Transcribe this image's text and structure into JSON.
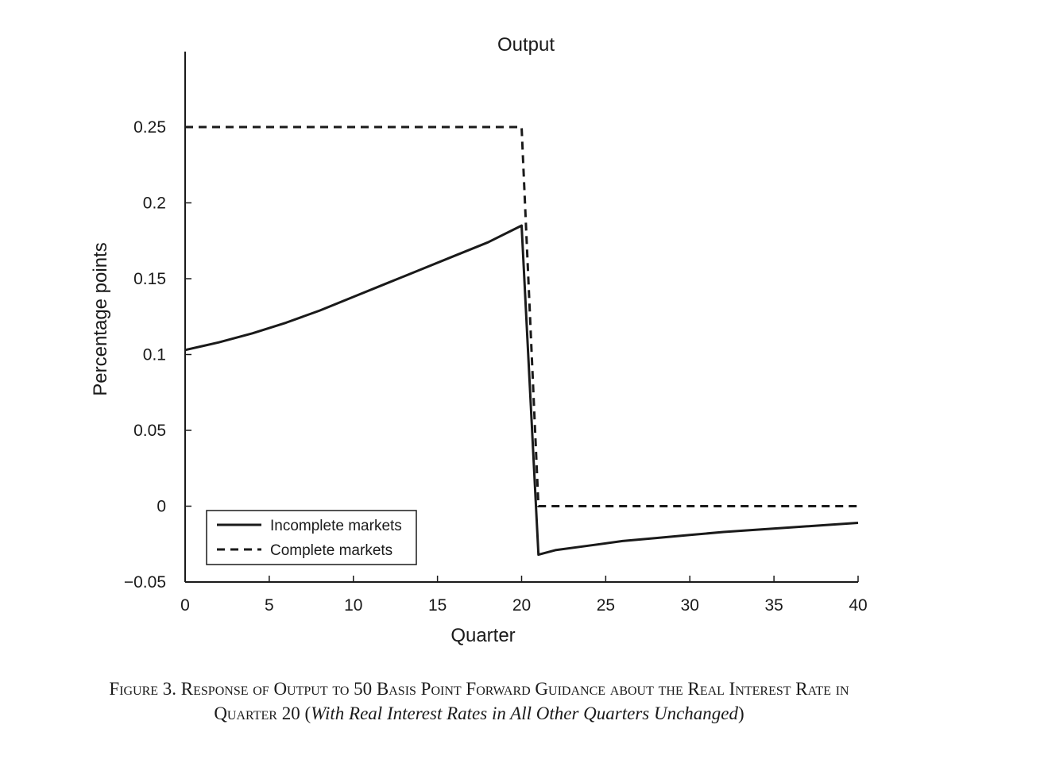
{
  "chart_data": {
    "type": "line",
    "title": "Output",
    "xlabel": "Quarter",
    "ylabel": "Percentage points",
    "xlim": [
      0,
      40
    ],
    "ylim": [
      -0.05,
      0.25
    ],
    "x_ticks": [
      0,
      5,
      10,
      15,
      20,
      25,
      30,
      35,
      40
    ],
    "y_ticks": [
      -0.05,
      0,
      0.05,
      0.1,
      0.15,
      0.2,
      0.25
    ],
    "x_tick_labels": [
      "0",
      "5",
      "10",
      "15",
      "20",
      "25",
      "30",
      "35",
      "40"
    ],
    "y_tick_labels": [
      "−0.05",
      "0",
      "0.05",
      "0.1",
      "0.15",
      "0.2",
      "0.25"
    ],
    "grid": false,
    "legend_position": "bottom-left",
    "series": [
      {
        "name": "Incomplete markets",
        "style": "solid",
        "color": "#1a1a1a",
        "x": [
          0,
          2,
          4,
          6,
          8,
          10,
          12,
          14,
          16,
          18,
          20,
          21,
          22,
          24,
          26,
          28,
          30,
          32,
          34,
          36,
          38,
          40
        ],
        "y": [
          0.103,
          0.108,
          0.114,
          0.121,
          0.129,
          0.138,
          0.147,
          0.156,
          0.165,
          0.174,
          0.185,
          -0.032,
          -0.029,
          -0.026,
          -0.023,
          -0.021,
          -0.019,
          -0.017,
          -0.0155,
          -0.014,
          -0.0125,
          -0.011
        ]
      },
      {
        "name": "Complete markets",
        "style": "dashed",
        "color": "#1a1a1a",
        "x": [
          0,
          20,
          21,
          40
        ],
        "y": [
          0.25,
          0.25,
          0,
          0
        ]
      }
    ]
  },
  "caption": {
    "label": "Figure 3. Response of Output to 50 Basis Point Forward Guidance about the Real Interest Rate in",
    "line2_plain": "Quarter 20 (",
    "line2_italic": "With Real Interest Rates in All Other Quarters Unchanged",
    "line2_end": ")"
  }
}
